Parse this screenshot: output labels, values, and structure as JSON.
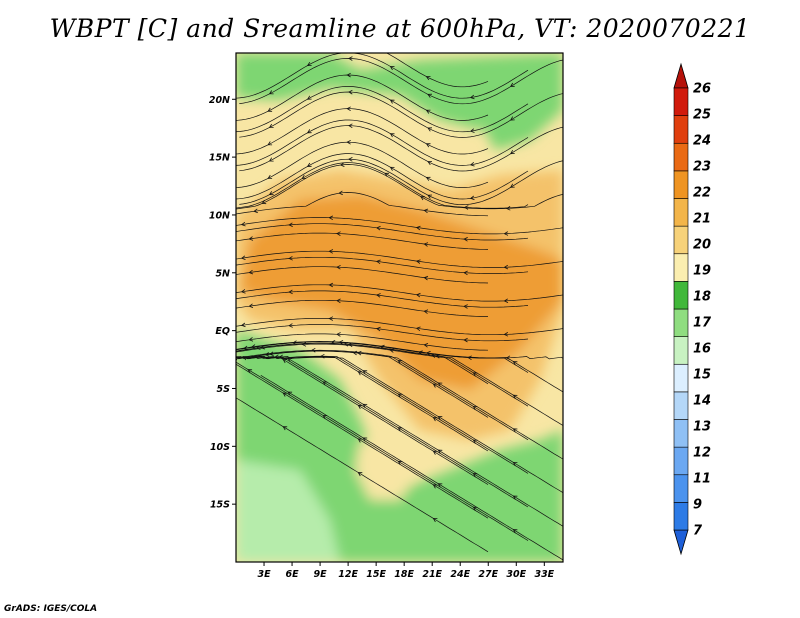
{
  "title": "WBPT [C] and Sreamline at 600hPa, VT: 2020070221",
  "footer": "GrADS: IGES/COLA",
  "map": {
    "lon_range": [
      0,
      35
    ],
    "lat_range": [
      -20,
      24
    ],
    "lat_ticks": [
      {
        "value": 20,
        "label": "20N"
      },
      {
        "value": 15,
        "label": "15N"
      },
      {
        "value": 10,
        "label": "10N"
      },
      {
        "value": 5,
        "label": "5N"
      },
      {
        "value": 0,
        "label": "EQ"
      },
      {
        "value": -5,
        "label": "5S"
      },
      {
        "value": -10,
        "label": "10S"
      },
      {
        "value": -15,
        "label": "15S"
      }
    ],
    "lon_ticks": [
      {
        "value": 3,
        "label": "3E"
      },
      {
        "value": 6,
        "label": "6E"
      },
      {
        "value": 9,
        "label": "9E"
      },
      {
        "value": 12,
        "label": "12E"
      },
      {
        "value": 15,
        "label": "15E"
      },
      {
        "value": 18,
        "label": "18E"
      },
      {
        "value": 21,
        "label": "21E"
      },
      {
        "value": 24,
        "label": "24E"
      },
      {
        "value": 27,
        "label": "27E"
      },
      {
        "value": 30,
        "label": "30E"
      },
      {
        "value": 33,
        "label": "33E"
      }
    ]
  },
  "colorbar": {
    "levels": [
      "7",
      "9",
      "11",
      "12",
      "13",
      "14",
      "15",
      "16",
      "17",
      "18",
      "19",
      "20",
      "21",
      "22",
      "23",
      "24",
      "25",
      "26"
    ],
    "colors": [
      "#1e5fd8",
      "#2d7be6",
      "#4b93ee",
      "#6ba8f2",
      "#8fc0f5",
      "#b4d7f8",
      "#dcefff",
      "#c8f2c2",
      "#8fdd80",
      "#41b83a",
      "#fbeeb0",
      "#f7d27a",
      "#f3b54a",
      "#ef9422",
      "#ea6a14",
      "#e03f0e",
      "#d11a0c",
      "#b5110a"
    ]
  },
  "field": {
    "description_colors": {
      "green_dark": "#3fae3a",
      "green": "#7ed672",
      "green_light": "#b6ecab",
      "yellow": "#f8e6a4",
      "orange_light": "#f4c26a",
      "orange": "#ee9d36"
    }
  }
}
